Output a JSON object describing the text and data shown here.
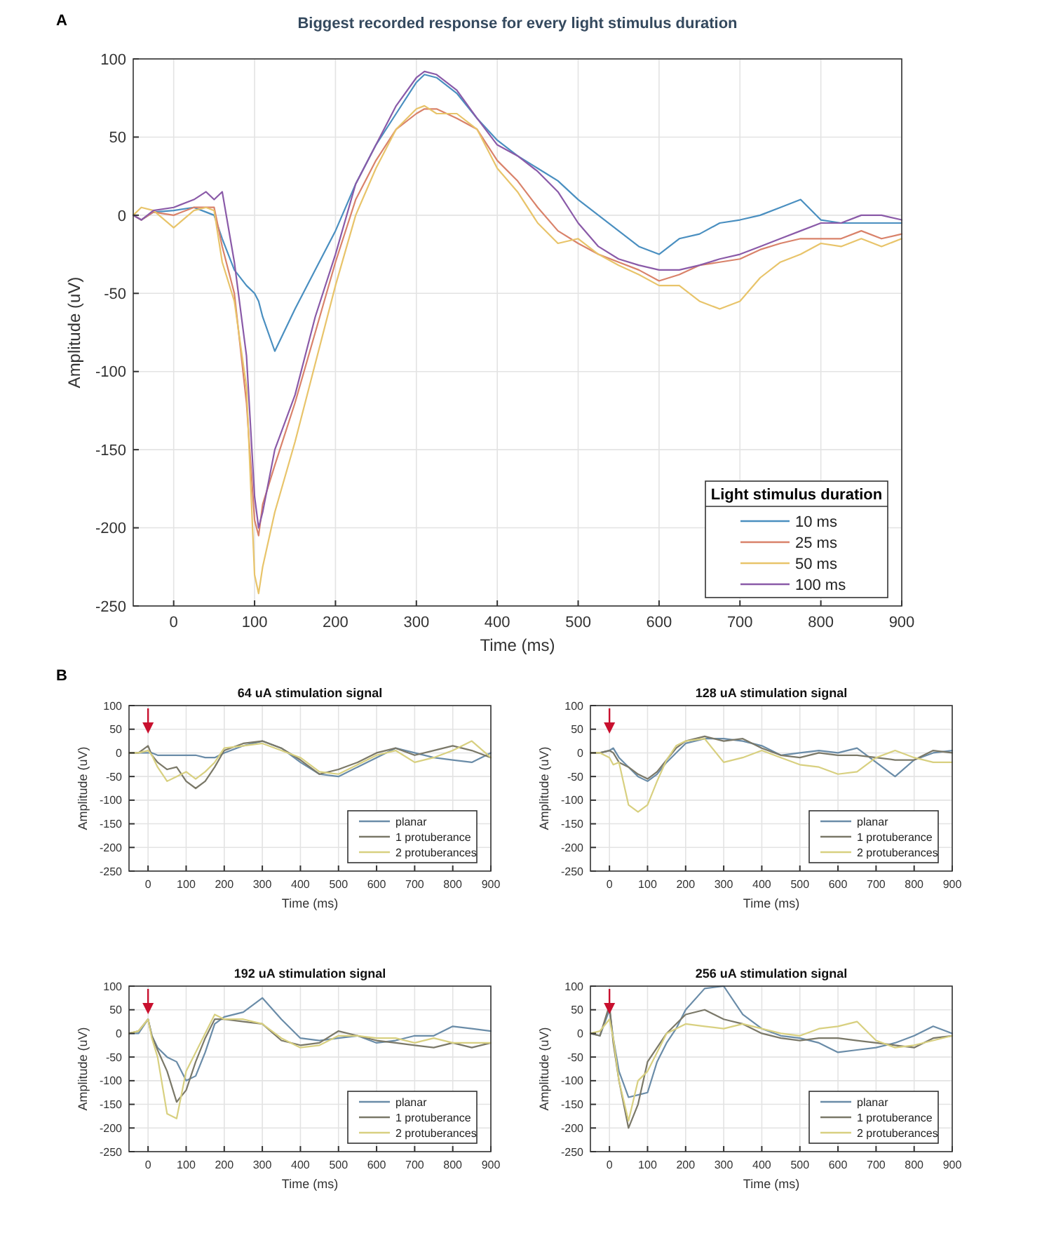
{
  "chart_data": [
    {
      "type": "line",
      "title": "Biggest recorded response for every light stimulus duration",
      "xlabel": "Time (ms)",
      "ylabel": "Amplitude (uV)",
      "legend_title": "Light stimulus duration",
      "legend": "bottom right",
      "grid": true,
      "annotations": [
        "A"
      ],
      "x": [
        -50,
        -40,
        -25,
        0,
        25,
        40,
        50,
        60,
        75,
        90,
        100,
        105,
        110,
        125,
        150,
        175,
        200,
        225,
        250,
        275,
        300,
        310,
        325,
        350,
        375,
        400,
        425,
        450,
        475,
        500,
        525,
        550,
        575,
        600,
        625,
        650,
        675,
        700,
        725,
        750,
        775,
        800,
        825,
        850,
        875,
        900
      ],
      "xlim": [
        -50,
        900
      ],
      "xticks": [
        0,
        100,
        200,
        300,
        400,
        500,
        600,
        700,
        800,
        900
      ],
      "ylim": [
        -250,
        100
      ],
      "yticks": [
        -250,
        -200,
        -150,
        -100,
        -50,
        0,
        50,
        100
      ],
      "series": [
        {
          "name": "10 ms",
          "color": "#4a8fc0",
          "values": [
            0,
            -3,
            2,
            3,
            5,
            2,
            0,
            -15,
            -35,
            -45,
            -50,
            -55,
            -65,
            -87,
            -60,
            -35,
            -10,
            20,
            45,
            65,
            85,
            90,
            88,
            78,
            62,
            48,
            38,
            30,
            22,
            10,
            0,
            -10,
            -20,
            -25,
            -15,
            -12,
            -5,
            -3,
            0,
            5,
            10,
            -3,
            -5,
            -5,
            -5,
            -5
          ]
        },
        {
          "name": "25 ms",
          "color": "#d9826a",
          "values": [
            0,
            -3,
            2,
            0,
            5,
            5,
            5,
            -20,
            -50,
            -120,
            -195,
            -205,
            -185,
            -160,
            -120,
            -75,
            -30,
            10,
            35,
            55,
            65,
            68,
            68,
            62,
            55,
            35,
            22,
            5,
            -10,
            -18,
            -25,
            -30,
            -35,
            -42,
            -38,
            -32,
            -30,
            -28,
            -22,
            -18,
            -15,
            -15,
            -15,
            -10,
            -15,
            -12
          ]
        },
        {
          "name": "50 ms",
          "color": "#e8c46a",
          "values": [
            0,
            5,
            3,
            -8,
            3,
            5,
            3,
            -30,
            -55,
            -110,
            -230,
            -242,
            -225,
            -190,
            -145,
            -95,
            -45,
            0,
            30,
            55,
            68,
            70,
            65,
            65,
            55,
            30,
            15,
            -5,
            -18,
            -15,
            -25,
            -32,
            -38,
            -45,
            -45,
            -55,
            -60,
            -55,
            -40,
            -30,
            -25,
            -18,
            -20,
            -15,
            -20,
            -15
          ]
        },
        {
          "name": "100 ms",
          "color": "#8a5aa8",
          "values": [
            0,
            -3,
            3,
            5,
            10,
            15,
            10,
            15,
            -30,
            -90,
            -180,
            -200,
            -190,
            -150,
            -115,
            -65,
            -25,
            20,
            45,
            70,
            88,
            92,
            90,
            80,
            62,
            45,
            38,
            28,
            15,
            -5,
            -20,
            -28,
            -32,
            -35,
            -35,
            -32,
            -28,
            -25,
            -20,
            -15,
            -10,
            -5,
            -5,
            0,
            0,
            -3
          ]
        }
      ]
    },
    {
      "type": "line",
      "title": "64 uA stimulation signal",
      "xlabel": "Time (ms)",
      "ylabel": "Amplitude (uV)",
      "legend": "bottom right",
      "grid": true,
      "annotations": [
        "B"
      ],
      "x": [
        -50,
        -25,
        0,
        10,
        25,
        50,
        75,
        100,
        125,
        150,
        175,
        200,
        250,
        300,
        350,
        400,
        450,
        500,
        550,
        600,
        650,
        700,
        750,
        800,
        850,
        900
      ],
      "xlim": [
        -50,
        900
      ],
      "xticks": [
        0,
        100,
        200,
        300,
        400,
        500,
        600,
        700,
        800,
        900
      ],
      "ylim": [
        -250,
        100
      ],
      "yticks": [
        -250,
        -200,
        -150,
        -100,
        -50,
        0,
        50,
        100
      ],
      "series": [
        {
          "name": "planar",
          "color": "#6a8ca8",
          "values": [
            0,
            0,
            0,
            0,
            -5,
            -5,
            -5,
            -5,
            -5,
            -10,
            -10,
            0,
            15,
            25,
            10,
            -20,
            -45,
            -50,
            -30,
            -10,
            10,
            0,
            -10,
            -15,
            -20,
            0
          ]
        },
        {
          "name": "1 protuberance",
          "color": "#7a7868",
          "values": [
            0,
            0,
            15,
            -5,
            -20,
            -35,
            -30,
            -60,
            -75,
            -60,
            -30,
            5,
            20,
            25,
            10,
            -15,
            -45,
            -35,
            -20,
            0,
            10,
            -5,
            5,
            15,
            5,
            -10
          ]
        },
        {
          "name": "2 protuberances",
          "color": "#d8d080",
          "values": [
            0,
            0,
            5,
            -5,
            -30,
            -60,
            -50,
            -40,
            -55,
            -40,
            -20,
            10,
            15,
            20,
            5,
            -10,
            -40,
            -45,
            -25,
            -5,
            5,
            -20,
            -10,
            5,
            25,
            -10
          ]
        }
      ]
    },
    {
      "type": "line",
      "title": "128 uA stimulation signal",
      "xlabel": "Time (ms)",
      "ylabel": "Amplitude (uV)",
      "legend": "bottom right",
      "grid": true,
      "x": [
        -50,
        -25,
        0,
        10,
        25,
        50,
        75,
        100,
        125,
        150,
        175,
        200,
        250,
        300,
        350,
        400,
        450,
        500,
        550,
        600,
        650,
        700,
        750,
        800,
        850,
        900
      ],
      "xlim": [
        -50,
        900
      ],
      "xticks": [
        0,
        100,
        200,
        300,
        400,
        500,
        600,
        700,
        800,
        900
      ],
      "ylim": [
        -250,
        100
      ],
      "yticks": [
        -250,
        -200,
        -150,
        -100,
        -50,
        0,
        50,
        100
      ],
      "series": [
        {
          "name": "planar",
          "color": "#6a8ca8",
          "values": [
            0,
            0,
            5,
            10,
            -10,
            -30,
            -50,
            -60,
            -45,
            -20,
            0,
            20,
            30,
            30,
            25,
            15,
            -5,
            0,
            5,
            0,
            10,
            -20,
            -50,
            -15,
            0,
            5
          ]
        },
        {
          "name": "1 protuberance",
          "color": "#7a7868",
          "values": [
            0,
            0,
            5,
            0,
            -20,
            -30,
            -45,
            -55,
            -40,
            -15,
            10,
            25,
            35,
            25,
            30,
            10,
            -5,
            -10,
            0,
            -5,
            -5,
            -10,
            -15,
            -15,
            5,
            0
          ]
        },
        {
          "name": "2 protuberances",
          "color": "#d8d080",
          "values": [
            0,
            0,
            -10,
            -25,
            -20,
            -110,
            -125,
            -110,
            -60,
            -15,
            15,
            25,
            30,
            -20,
            -10,
            5,
            -10,
            -25,
            -30,
            -45,
            -40,
            -10,
            5,
            -10,
            -20,
            -20
          ]
        }
      ]
    },
    {
      "type": "line",
      "title": "192 uA stimulation signal",
      "xlabel": "Time (ms)",
      "ylabel": "Amplitude (uV)",
      "legend": "bottom right",
      "grid": true,
      "x": [
        -50,
        -25,
        0,
        10,
        25,
        50,
        75,
        100,
        125,
        150,
        175,
        200,
        250,
        300,
        350,
        400,
        450,
        500,
        550,
        600,
        650,
        700,
        750,
        800,
        850,
        900
      ],
      "xlim": [
        -50,
        900
      ],
      "xticks": [
        0,
        100,
        200,
        300,
        400,
        500,
        600,
        700,
        800,
        900
      ],
      "ylim": [
        -250,
        100
      ],
      "yticks": [
        -250,
        -200,
        -150,
        -100,
        -50,
        0,
        50,
        100
      ],
      "series": [
        {
          "name": "planar",
          "color": "#6a8ca8",
          "values": [
            0,
            0,
            30,
            -5,
            -30,
            -50,
            -60,
            -100,
            -90,
            -40,
            20,
            35,
            45,
            75,
            30,
            -10,
            -15,
            -10,
            -5,
            -20,
            -15,
            -5,
            -5,
            15,
            10,
            5
          ]
        },
        {
          "name": "1 protuberance",
          "color": "#7a7868",
          "values": [
            0,
            5,
            30,
            -5,
            -35,
            -80,
            -145,
            -120,
            -60,
            -10,
            30,
            30,
            25,
            20,
            -15,
            -25,
            -20,
            5,
            -5,
            -15,
            -20,
            -25,
            -30,
            -20,
            -30,
            -20
          ]
        },
        {
          "name": "2 protuberances",
          "color": "#d8d080",
          "values": [
            0,
            5,
            30,
            -10,
            -50,
            -170,
            -180,
            -80,
            -40,
            0,
            40,
            30,
            30,
            20,
            -10,
            -30,
            -25,
            -5,
            -5,
            -10,
            -10,
            -20,
            -10,
            -20,
            -20,
            -20
          ]
        }
      ]
    },
    {
      "type": "line",
      "title": "256 uA stimulation signal",
      "xlabel": "Time (ms)",
      "ylabel": "Amplitude (uV)",
      "legend": "bottom right",
      "grid": true,
      "x": [
        -50,
        -25,
        0,
        10,
        25,
        50,
        75,
        100,
        125,
        150,
        175,
        200,
        250,
        300,
        350,
        400,
        450,
        500,
        550,
        600,
        650,
        700,
        750,
        800,
        850,
        900
      ],
      "xlim": [
        -50,
        900
      ],
      "xticks": [
        0,
        100,
        200,
        300,
        400,
        500,
        600,
        700,
        800,
        900
      ],
      "ylim": [
        -250,
        100
      ],
      "yticks": [
        -250,
        -200,
        -150,
        -100,
        -50,
        0,
        50,
        100
      ],
      "series": [
        {
          "name": "planar",
          "color": "#6a8ca8",
          "values": [
            0,
            -5,
            50,
            -10,
            -80,
            -135,
            -130,
            -125,
            -60,
            -20,
            10,
            50,
            95,
            100,
            40,
            10,
            -5,
            -10,
            -20,
            -40,
            -35,
            -30,
            -20,
            -5,
            15,
            0
          ]
        },
        {
          "name": "1 protuberance",
          "color": "#7a7868",
          "values": [
            0,
            -5,
            60,
            -20,
            -100,
            -200,
            -150,
            -60,
            -30,
            0,
            20,
            40,
            50,
            30,
            20,
            0,
            -10,
            -15,
            -10,
            -10,
            -15,
            -20,
            -25,
            -30,
            -10,
            -5
          ]
        },
        {
          "name": "2 protuberances",
          "color": "#d8d080",
          "values": [
            0,
            5,
            30,
            -10,
            -100,
            -185,
            -100,
            -80,
            -40,
            0,
            10,
            20,
            15,
            10,
            20,
            10,
            0,
            -5,
            10,
            15,
            25,
            -15,
            -30,
            -25,
            -15,
            -5
          ]
        }
      ]
    }
  ]
}
